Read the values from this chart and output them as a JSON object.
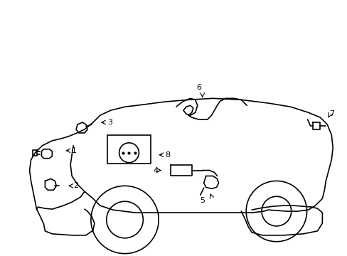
{
  "title": "",
  "background_color": "#ffffff",
  "line_color": "#000000",
  "line_width": 1.2,
  "label_fontsize": 8,
  "fig_width": 4.89,
  "fig_height": 3.6,
  "dpi": 100
}
